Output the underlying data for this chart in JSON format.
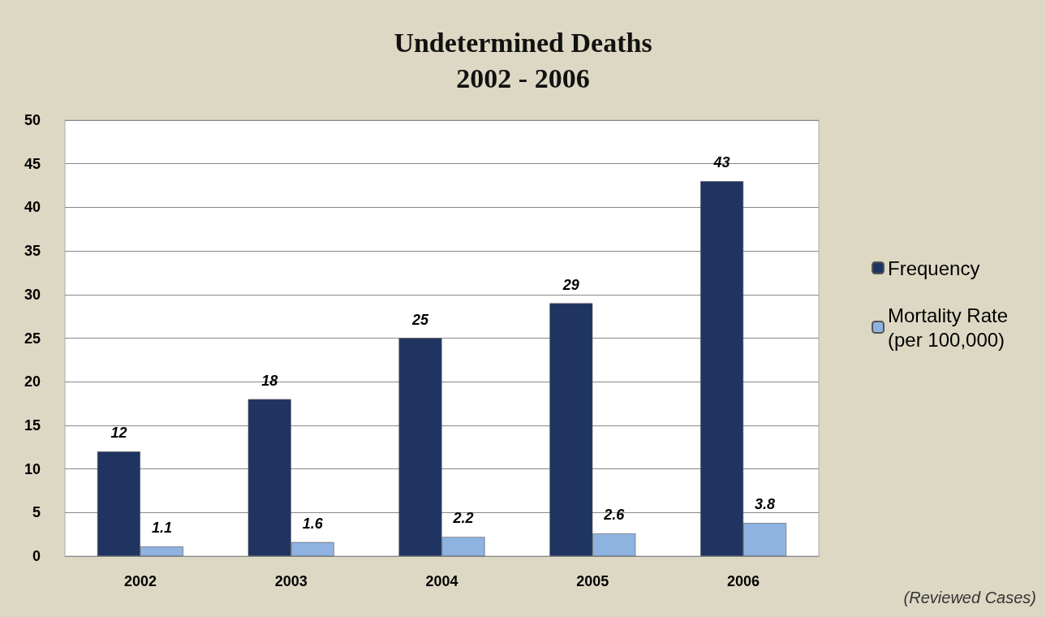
{
  "chart_data": {
    "type": "bar",
    "title": "Undetermined Deaths",
    "subtitle": "2002 - 2006",
    "categories": [
      "2002",
      "2003",
      "2004",
      "2005",
      "2006"
    ],
    "series": [
      {
        "name": "Frequency",
        "color": "#1f3461",
        "values": [
          12,
          18,
          25,
          29,
          43
        ]
      },
      {
        "name": "Mortality Rate (per 100,000)",
        "color": "#8fb3e0",
        "values": [
          1.1,
          1.6,
          2.2,
          2.6,
          3.8
        ]
      }
    ],
    "ylim": [
      0,
      50
    ],
    "yticks": [
      0,
      5,
      10,
      15,
      20,
      25,
      30,
      35,
      40,
      45,
      50
    ],
    "grid": "y",
    "legend": "right",
    "data_labels": true,
    "annotations": [
      "(Reviewed Cases)"
    ]
  }
}
